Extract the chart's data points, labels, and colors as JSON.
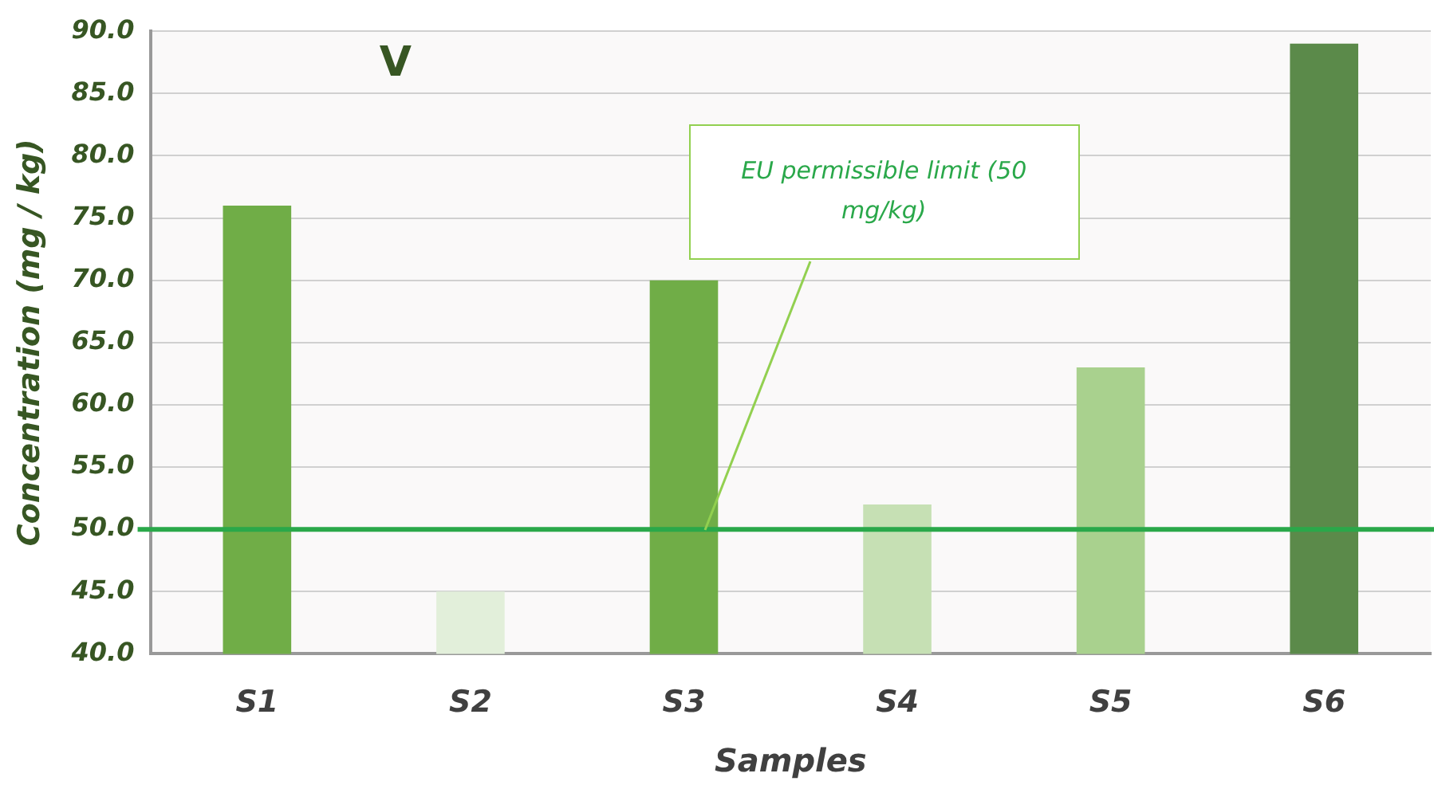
{
  "chart_data": {
    "type": "bar",
    "title": "V",
    "xlabel": "Samples",
    "ylabel": "Concentration (mg / kg)",
    "categories": [
      "S1",
      "S2",
      "S3",
      "S4",
      "S5",
      "S6"
    ],
    "values": [
      76,
      45,
      70,
      52,
      63,
      89
    ],
    "colors": [
      "#70ad47",
      "#e2efda",
      "#70ad47",
      "#c6e0b4",
      "#a9d18e",
      "#5b8a4a"
    ],
    "ylim": [
      40,
      90
    ],
    "yticks": [
      {
        "value": 40,
        "label": "40.0"
      },
      {
        "value": 45,
        "label": "45.0"
      },
      {
        "value": 50,
        "label": "50.0"
      },
      {
        "value": 55,
        "label": "55.0"
      },
      {
        "value": 60,
        "label": "60.0"
      },
      {
        "value": 65,
        "label": "65.0"
      },
      {
        "value": 70,
        "label": "70.0"
      },
      {
        "value": 75,
        "label": "75.0"
      },
      {
        "value": 80,
        "label": "80.0"
      },
      {
        "value": 85,
        "label": "85.0"
      },
      {
        "value": 90,
        "label": "90.0"
      }
    ],
    "grid": "y",
    "legend": false,
    "ref_lines": [
      {
        "axis": "y",
        "value": 50,
        "label": "EU permissible limit (50 mg/kg)",
        "color": "#2aa84a"
      }
    ]
  }
}
